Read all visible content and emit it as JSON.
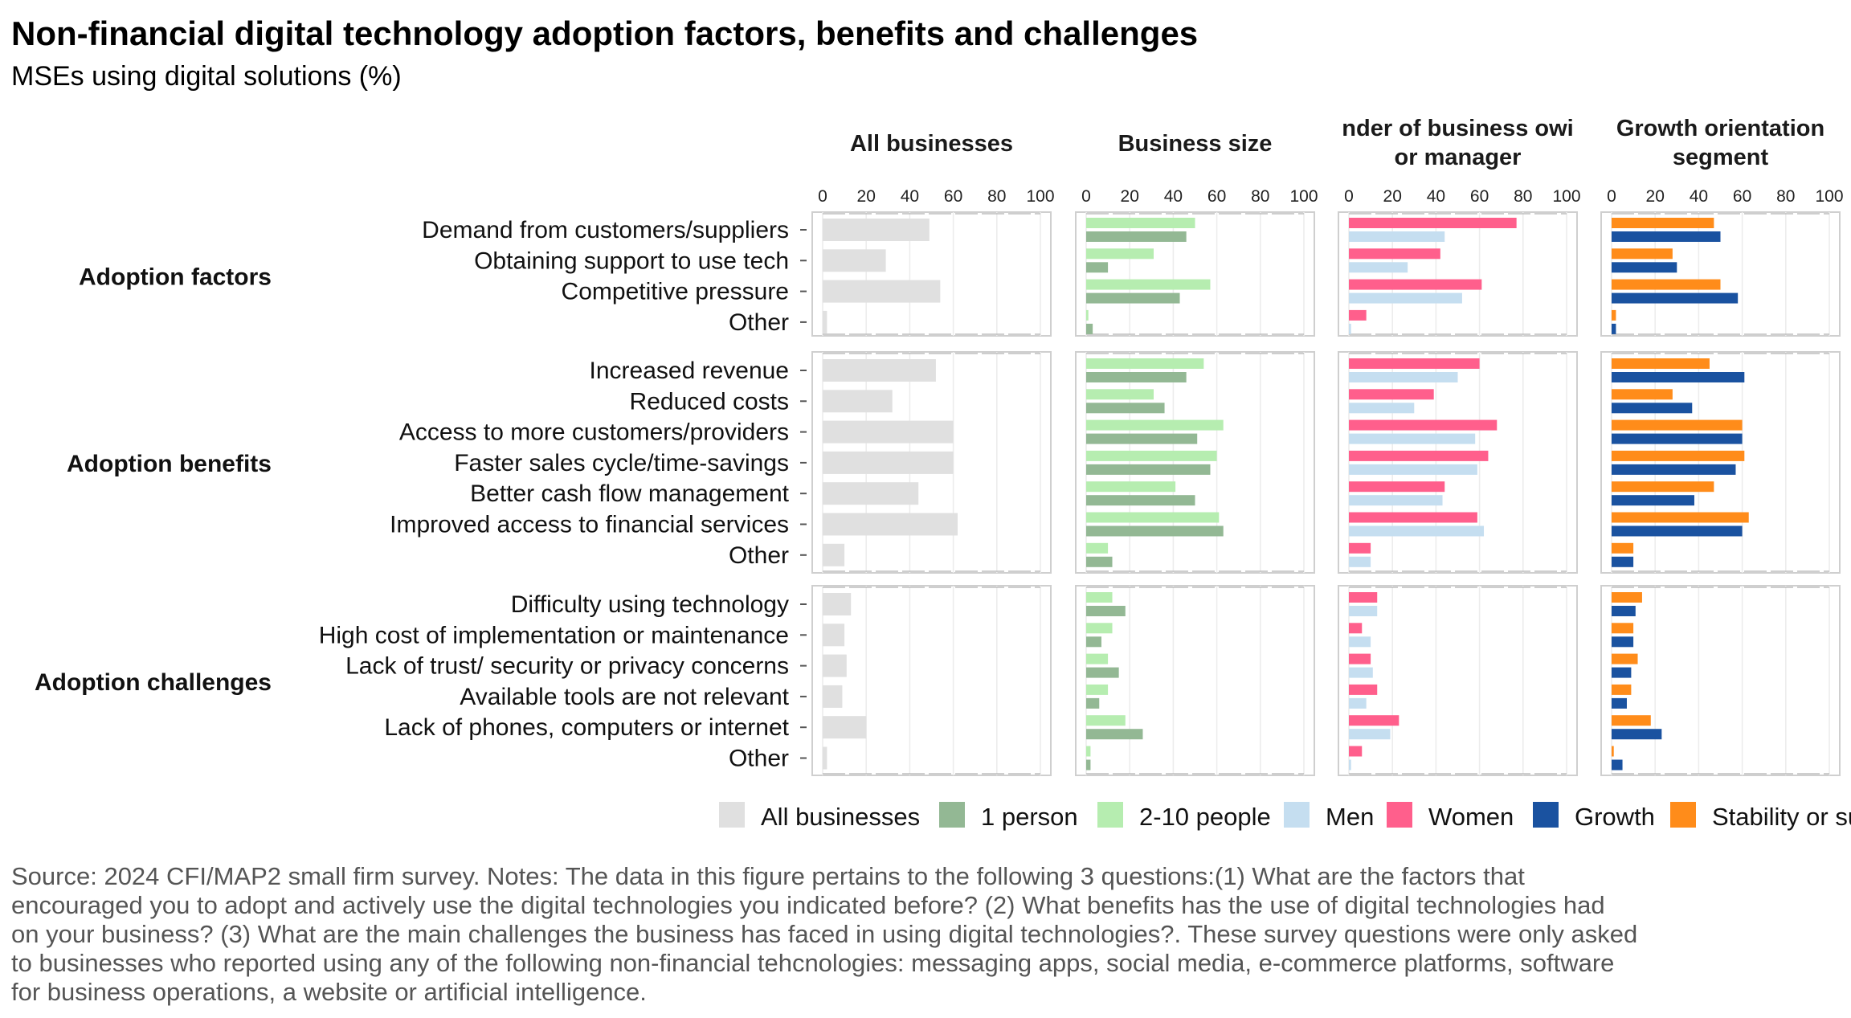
{
  "title": "Non-financial digital technology adoption factors, benefits and challenges",
  "subtitle": "MSEs using digital solutions (%)",
  "caption_lines": [
    "Source: 2024 CFI/MAP2 small firm survey. Notes: The data in this figure pertains to the following 3 questions:(1) What are the factors that",
    "encouraged you to adopt and actively use the digital technologies you indicated before? (2) What benefits has the use of digital technologies had",
    "on your business? (3) What are the main challenges the business has faced in using digital technologies?. These survey questions were only asked",
    "to businesses who reported using any of the following non-financial tehcnologies: messaging apps, social media, e-commerce platforms, software",
    "for business operations, a website or artificial intelligence."
  ],
  "chart_data": {
    "type": "bar",
    "orientation": "horizontal",
    "xlim": [
      0,
      100
    ],
    "x_ticks": [
      "0",
      "20",
      "40",
      "60",
      "80",
      "100"
    ],
    "grid": true,
    "legend_position": "bottom",
    "panels": [
      {
        "id": "all",
        "title_lines": [
          "All businesses"
        ],
        "series": [
          "All businesses"
        ]
      },
      {
        "id": "size",
        "title_lines": [
          "Business size"
        ],
        "series": [
          "2-10 people",
          "1 person"
        ]
      },
      {
        "id": "gender",
        "title_lines": [
          "nder of business owi",
          "or manager"
        ],
        "series": [
          "Women",
          "Men"
        ]
      },
      {
        "id": "growth",
        "title_lines": [
          "Growth orientation",
          "segment"
        ],
        "series": [
          "Stability or su",
          "Growth"
        ]
      }
    ],
    "legend": [
      {
        "name": "All businesses",
        "color": "#e0e0e0"
      },
      {
        "name": "1 person",
        "color": "#93b894"
      },
      {
        "name": "2-10 people",
        "color": "#b6edb0"
      },
      {
        "name": "Men",
        "color": "#c5def0"
      },
      {
        "name": "Women",
        "color": "#ff5f8c"
      },
      {
        "name": "Growth",
        "color": "#1a52a0"
      },
      {
        "name": "Stability or su",
        "color": "#ff8c1a"
      }
    ],
    "groups": [
      {
        "label": "Adoption factors",
        "rows": [
          {
            "label": "Demand from customers/suppliers",
            "values": {
              "All businesses": 49,
              "1 person": 46,
              "2-10 people": 50,
              "Men": 44,
              "Women": 77,
              "Growth": 50,
              "Stability or su": 47
            }
          },
          {
            "label": "Obtaining support to use tech",
            "values": {
              "All businesses": 29,
              "1 person": 10,
              "2-10 people": 31,
              "Men": 27,
              "Women": 42,
              "Growth": 30,
              "Stability or su": 28
            }
          },
          {
            "label": "Competitive pressure",
            "values": {
              "All businesses": 54,
              "1 person": 43,
              "2-10 people": 57,
              "Men": 52,
              "Women": 61,
              "Growth": 58,
              "Stability or su": 50
            }
          },
          {
            "label": "Other",
            "values": {
              "All businesses": 2,
              "1 person": 3,
              "2-10 people": 1,
              "Men": 1,
              "Women": 8,
              "Growth": 2,
              "Stability or su": 2
            }
          }
        ]
      },
      {
        "label": "Adoption benefits",
        "rows": [
          {
            "label": "Increased revenue",
            "values": {
              "All businesses": 52,
              "1 person": 46,
              "2-10 people": 54,
              "Men": 50,
              "Women": 60,
              "Growth": 61,
              "Stability or su": 45
            }
          },
          {
            "label": "Reduced costs",
            "values": {
              "All businesses": 32,
              "1 person": 36,
              "2-10 people": 31,
              "Men": 30,
              "Women": 39,
              "Growth": 37,
              "Stability or su": 28
            }
          },
          {
            "label": "Access to more customers/providers",
            "values": {
              "All businesses": 60,
              "1 person": 51,
              "2-10 people": 63,
              "Men": 58,
              "Women": 68,
              "Growth": 60,
              "Stability or su": 60
            }
          },
          {
            "label": "Faster sales cycle/time-savings",
            "values": {
              "All businesses": 60,
              "1 person": 57,
              "2-10 people": 60,
              "Men": 59,
              "Women": 64,
              "Growth": 57,
              "Stability or su": 61
            }
          },
          {
            "label": "Better cash flow management",
            "values": {
              "All businesses": 44,
              "1 person": 50,
              "2-10 people": 41,
              "Men": 43,
              "Women": 44,
              "Growth": 38,
              "Stability or su": 47
            }
          },
          {
            "label": "Improved access to financial services",
            "values": {
              "All businesses": 62,
              "1 person": 63,
              "2-10 people": 61,
              "Men": 62,
              "Women": 59,
              "Growth": 60,
              "Stability or su": 63
            }
          },
          {
            "label": "Other",
            "values": {
              "All businesses": 10,
              "1 person": 12,
              "2-10 people": 10,
              "Men": 10,
              "Women": 10,
              "Growth": 10,
              "Stability or su": 10
            }
          }
        ]
      },
      {
        "label": "Adoption challenges",
        "rows": [
          {
            "label": "Difficulty using technology",
            "values": {
              "All businesses": 13,
              "1 person": 18,
              "2-10 people": 12,
              "Men": 13,
              "Women": 13,
              "Growth": 11,
              "Stability or su": 14
            }
          },
          {
            "label": "High cost of implementation or maintenance",
            "values": {
              "All businesses": 10,
              "1 person": 7,
              "2-10 people": 12,
              "Men": 10,
              "Women": 6,
              "Growth": 10,
              "Stability or su": 10
            }
          },
          {
            "label": "Lack of trust/ security or privacy concerns",
            "values": {
              "All businesses": 11,
              "1 person": 15,
              "2-10 people": 10,
              "Men": 11,
              "Women": 10,
              "Growth": 9,
              "Stability or su": 12
            }
          },
          {
            "label": "Available tools are not relevant",
            "values": {
              "All businesses": 9,
              "1 person": 6,
              "2-10 people": 10,
              "Men": 8,
              "Women": 13,
              "Growth": 7,
              "Stability or su": 9
            }
          },
          {
            "label": "Lack of phones, computers or internet",
            "values": {
              "All businesses": 20,
              "1 person": 26,
              "2-10 people": 18,
              "Men": 19,
              "Women": 23,
              "Growth": 23,
              "Stability or su": 18
            }
          },
          {
            "label": "Other",
            "values": {
              "All businesses": 2,
              "1 person": 2,
              "2-10 people": 2,
              "Men": 1,
              "Women": 6,
              "Growth": 5,
              "Stability or su": 1
            }
          }
        ]
      }
    ]
  }
}
